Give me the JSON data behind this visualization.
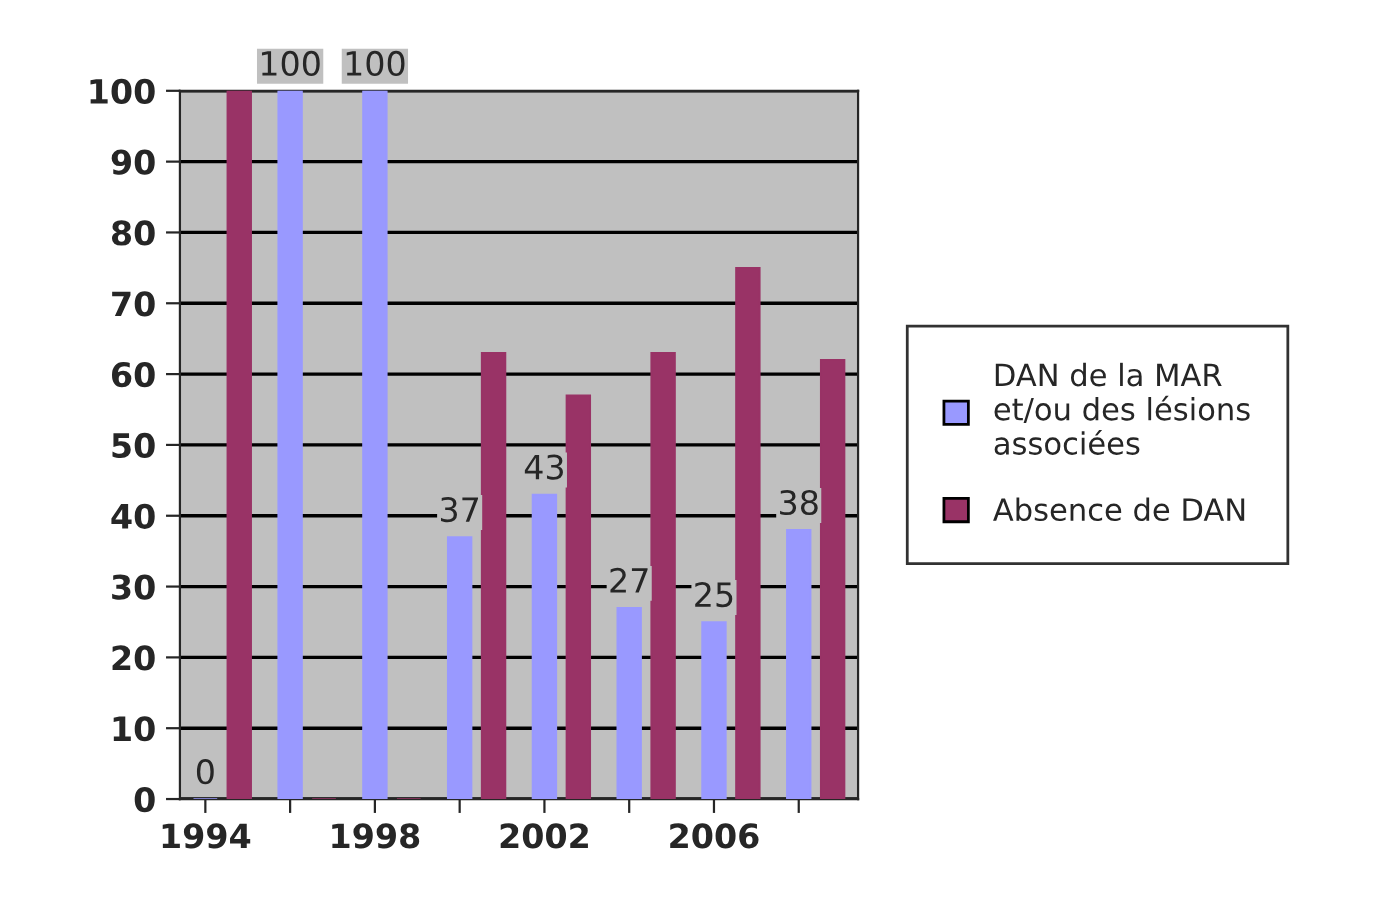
{
  "chart_data": {
    "type": "bar",
    "categories": [
      "1994",
      null,
      "1998",
      null,
      "2002",
      null,
      "2006",
      null
    ],
    "series": [
      {
        "name": "DAN de la MAR\net/ou des lésions\nassociées",
        "color": "#9999ff",
        "values": [
          0,
          100,
          100,
          37,
          43,
          27,
          25,
          38
        ],
        "value_labels": [
          "0",
          "100",
          "100",
          "37",
          "43",
          "27",
          "25",
          "38"
        ]
      },
      {
        "name": "Absence de DAN",
        "color": "#993366",
        "values": [
          100,
          0,
          0,
          63,
          57,
          63,
          75,
          62
        ]
      }
    ],
    "ylim": [
      0,
      100
    ],
    "yticks": [
      0,
      10,
      20,
      30,
      40,
      50,
      60,
      70,
      80,
      90,
      100
    ],
    "grid": "y",
    "legend": "right"
  }
}
